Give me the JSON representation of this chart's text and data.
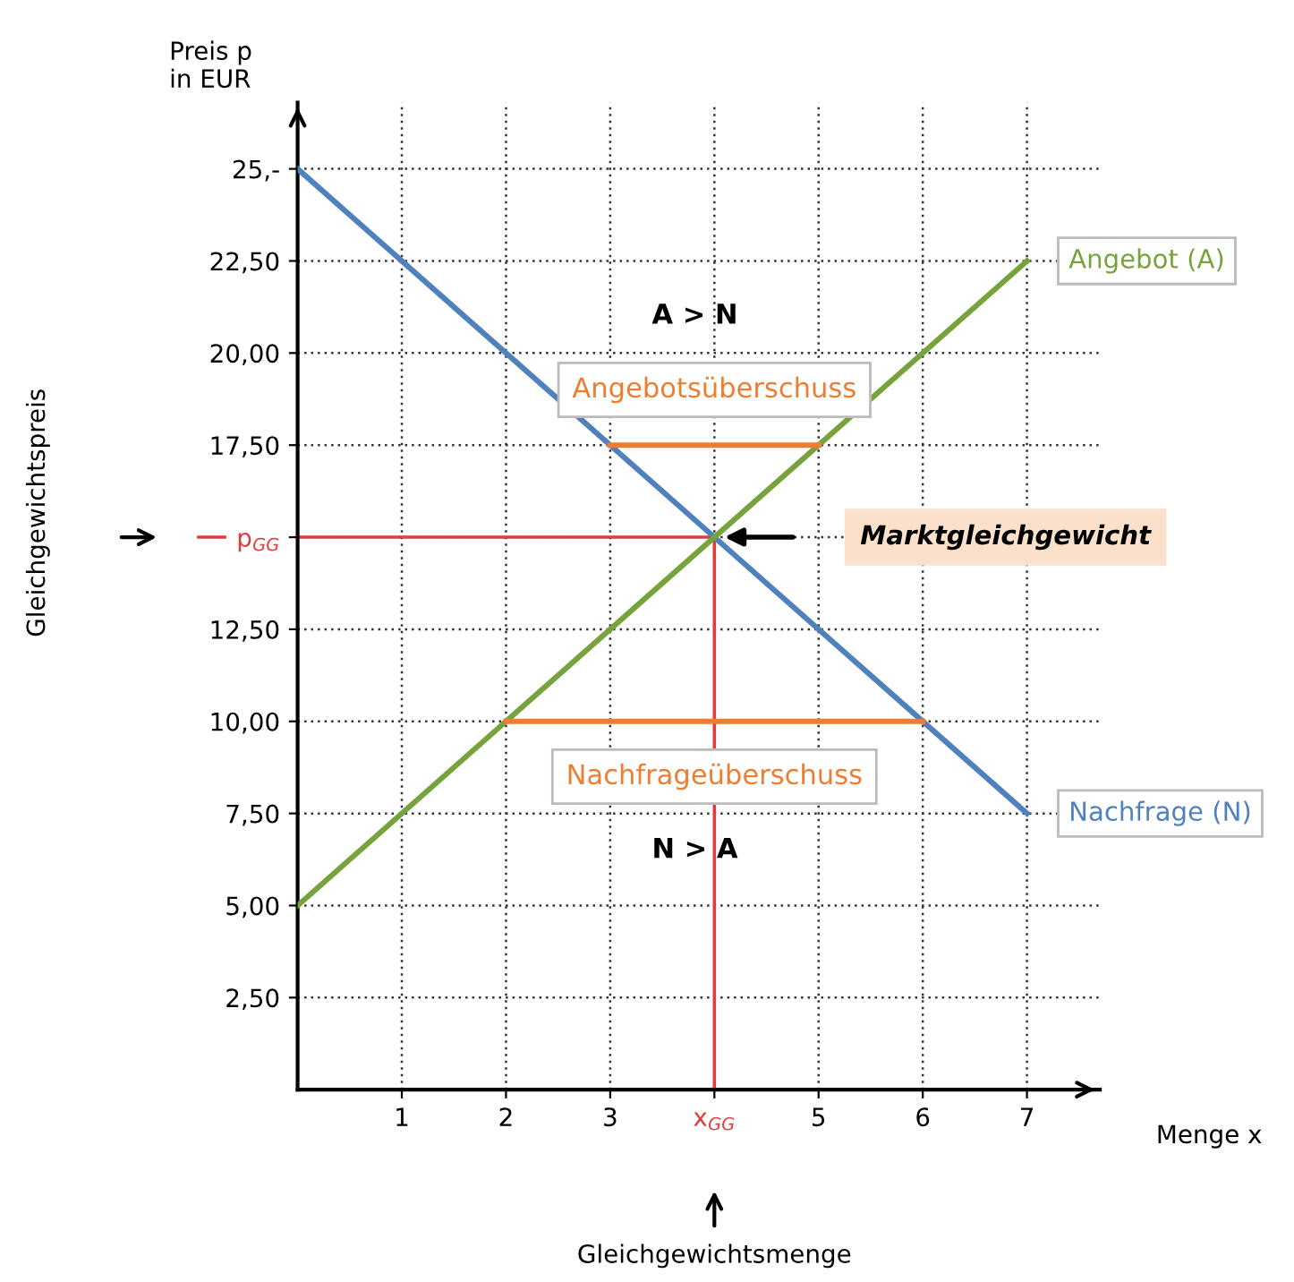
{
  "chart_data": {
    "type": "line",
    "ylabel": "Preis p\nin EUR",
    "xlabel": "Menge x",
    "series": [
      {
        "name": "Nachfrage (N)",
        "color": "#4f81bd",
        "x": [
          0,
          7
        ],
        "values": [
          25,
          7.5
        ]
      },
      {
        "name": "Angebot (A)",
        "color": "#77a33c",
        "x": [
          0,
          7
        ],
        "values": [
          5,
          22.5
        ]
      },
      {
        "color": "#ed7d31",
        "x": [
          3,
          5
        ],
        "values": [
          17.5,
          17.5
        ]
      },
      {
        "color": "#ed7d31",
        "x": [
          2,
          6
        ],
        "values": [
          10,
          10
        ]
      }
    ],
    "xlim": [
      0,
      7.7
    ],
    "ylim": [
      0,
      26.8
    ],
    "xticks": [
      1,
      2,
      3,
      {
        "value": 4,
        "label": "x$_{GG}$"
      },
      5,
      6,
      7
    ],
    "yticks": [
      {
        "value": 2.5,
        "label": "2,50"
      },
      {
        "value": 5,
        "label": "5,00"
      },
      {
        "value": 7.5,
        "label": "7,50"
      },
      {
        "value": 10,
        "label": "10,00"
      },
      {
        "value": 12.5,
        "label": "12,50"
      },
      {
        "value": 15,
        "label": "p$_{GG}$"
      },
      {
        "value": 17.5,
        "label": "17,50"
      },
      {
        "value": 20,
        "label": "20,00"
      },
      {
        "value": 22.5,
        "label": "22,50"
      },
      {
        "value": 25,
        "label": "25,-"
      }
    ],
    "ref_lines": [
      {
        "axis": "x",
        "value": 4,
        "color": "#e03c3c"
      },
      {
        "axis": "y",
        "value": 15,
        "color": "#e03c3c"
      }
    ],
    "annotations": [
      "A > N",
      "Angebotsüberschuss",
      "Marktgleichgewicht",
      "Nachfrageüberschuss",
      "N > A",
      "Gleichgewichtspreis",
      "Gleichgewichtsmenge"
    ],
    "grid": true,
    "legend": false,
    "line_style": "solid",
    "marker": "none"
  }
}
